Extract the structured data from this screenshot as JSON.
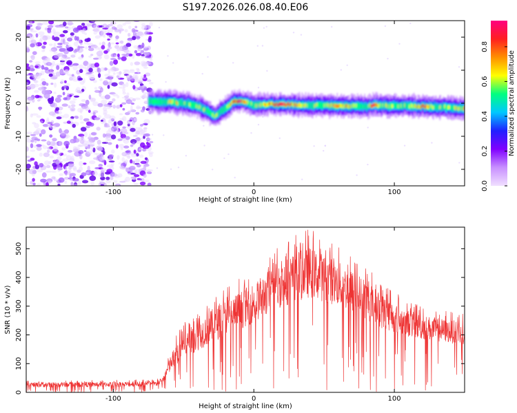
{
  "chart_data": [
    {
      "type": "heatmap",
      "title": "S197.2026.026.08.40.E06",
      "xlabel": "Height of straight line (km)",
      "ylabel": "Frequency (Hz)",
      "xlim": [
        -162,
        150
      ],
      "ylim": [
        -25,
        25
      ],
      "xticks": [
        -100,
        0,
        100
      ],
      "xtick_labels": [
        "-100",
        "0",
        "100"
      ],
      "yticks": [
        -20,
        -10,
        0,
        10,
        20
      ],
      "ytick_labels": [
        "-20",
        "-10",
        "0",
        "10",
        "20"
      ],
      "colorbar": {
        "label": "Normalized spectral amplitude",
        "range": [
          0,
          0.95
        ],
        "ticks": [
          0,
          0.2,
          0.4,
          0.6,
          0.8
        ],
        "tick_labels": [
          "0.0",
          "0.2",
          "0.4",
          "0.6",
          "0.8"
        ],
        "colormap": [
          "#f0e0ff",
          "#c890ff",
          "#8000ff",
          "#2020ff",
          "#00c8ff",
          "#00ff80",
          "#ffff00",
          "#ff9000",
          "#ff2020",
          "#ff0080"
        ]
      },
      "noise_region_x": [
        -162,
        -73
      ],
      "ridge": {
        "x": [
          -75,
          -70,
          -65,
          -60,
          -55,
          -50,
          -45,
          -40,
          -35,
          -30,
          -28,
          -25,
          -20,
          -15,
          -10,
          -5,
          0,
          10,
          20,
          30,
          40,
          50,
          60,
          70,
          80,
          85,
          90,
          100,
          110,
          120,
          130,
          140,
          150
        ],
        "frequency": [
          0.5,
          0.5,
          0.3,
          0.4,
          0.2,
          0,
          -0.3,
          -1,
          -2,
          -3.2,
          -3.8,
          -3,
          -1.5,
          0.5,
          0.7,
          0.3,
          -0.5,
          -0.3,
          -0.4,
          -0.5,
          -0.6,
          -0.7,
          -0.8,
          -0.9,
          -1,
          -0.5,
          -0.7,
          -0.8,
          -0.9,
          -1,
          -1.1,
          -1.3,
          -1.6
        ],
        "peak_amplitude": [
          0.35,
          0.55,
          0.5,
          0.6,
          0.65,
          0.55,
          0.55,
          0.6,
          0.55,
          0.5,
          0.6,
          0.5,
          0.5,
          0.75,
          0.9,
          0.6,
          0.55,
          0.7,
          0.85,
          0.7,
          0.55,
          0.6,
          0.75,
          0.6,
          0.5,
          0.85,
          0.6,
          0.55,
          0.55,
          0.8,
          0.55,
          0.6,
          0.7
        ]
      }
    },
    {
      "type": "line",
      "xlabel": "Height of straight line (km)",
      "ylabel": "SNR (10 * v/v)",
      "xlim": [
        -162,
        150
      ],
      "ylim": [
        0,
        575
      ],
      "xticks": [
        -100,
        0,
        100
      ],
      "xtick_labels": [
        "-100",
        "0",
        "100"
      ],
      "yticks": [
        0,
        100,
        200,
        300,
        400,
        500
      ],
      "ytick_labels": [
        "0",
        "100",
        "200",
        "300",
        "400",
        "500"
      ],
      "series": [
        {
          "name": "SNR",
          "color": "#ee3333",
          "envelope_x": [
            -162,
            -70,
            -65,
            -60,
            -55,
            -50,
            -40,
            -30,
            -20,
            -10,
            0,
            10,
            20,
            30,
            40,
            50,
            60,
            70,
            80,
            90,
            100,
            110,
            120,
            130,
            140,
            150
          ],
          "envelope_upper": [
            40,
            45,
            60,
            140,
            200,
            240,
            280,
            330,
            370,
            400,
            430,
            480,
            520,
            550,
            570,
            540,
            510,
            480,
            440,
            390,
            350,
            320,
            300,
            290,
            280,
            275
          ],
          "envelope_lower": [
            10,
            12,
            20,
            40,
            60,
            80,
            100,
            120,
            140,
            160,
            180,
            200,
            220,
            240,
            250,
            240,
            230,
            210,
            190,
            170,
            160,
            150,
            145,
            140,
            135,
            130
          ],
          "median": [
            22,
            24,
            35,
            90,
            130,
            160,
            190,
            220,
            250,
            270,
            300,
            330,
            360,
            390,
            400,
            390,
            370,
            350,
            320,
            290,
            270,
            255,
            245,
            235,
            228,
            222
          ]
        }
      ]
    }
  ]
}
